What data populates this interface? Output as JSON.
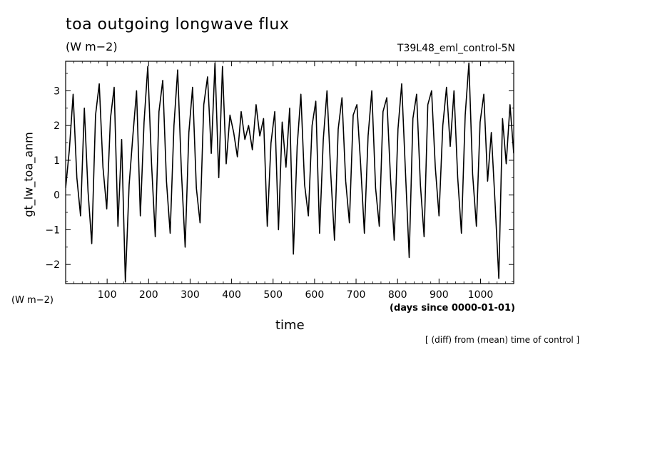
{
  "header": {
    "title": "toa outgoing longwave flux",
    "units": "(W m−2)",
    "run_name": "T39L48_eml_control-5N"
  },
  "axes": {
    "ylabel": "gt_lw_toa_anm",
    "y_units": "(W m−2)",
    "xlabel": "time",
    "x_units": "(days since 0000-01-01)"
  },
  "footnote": "[ (diff) from (mean) time of control ]",
  "chart_data": {
    "type": "line",
    "title": "toa outgoing longwave flux",
    "ylabel": "gt_lw_toa_anm",
    "xlabel": "time",
    "x_units": "days since 0000-01-01",
    "xlim": [
      0,
      1080
    ],
    "ylim": [
      -2.55,
      3.85
    ],
    "xticks": [
      100,
      200,
      300,
      400,
      500,
      600,
      700,
      800,
      900,
      1000
    ],
    "yticks": [
      -2,
      -1,
      0,
      1,
      2,
      3
    ],
    "ytick_labels": [
      "−2",
      "−1",
      "0",
      "1",
      "2",
      "3"
    ],
    "grid": false,
    "series": [
      {
        "x": [
          0,
          9,
          18,
          27,
          36,
          45,
          54,
          63,
          72,
          81,
          90,
          99,
          108,
          117,
          126,
          135,
          144,
          153,
          162,
          171,
          180,
          189,
          198,
          207,
          216,
          225,
          234,
          243,
          252,
          261,
          270,
          279,
          288,
          297,
          306,
          315,
          324,
          333,
          342,
          351,
          360,
          369,
          378,
          387,
          396,
          405,
          414,
          423,
          432,
          441,
          450,
          459,
          468,
          477,
          486,
          495,
          504,
          513,
          522,
          531,
          540,
          549,
          558,
          567,
          576,
          585,
          594,
          603,
          612,
          621,
          630,
          639,
          648,
          657,
          666,
          675,
          684,
          693,
          702,
          711,
          720,
          729,
          738,
          747,
          756,
          765,
          774,
          783,
          792,
          801,
          810,
          819,
          828,
          837,
          846,
          855,
          864,
          873,
          882,
          891,
          900,
          909,
          918,
          927,
          936,
          945,
          954,
          963,
          972,
          981,
          990,
          999,
          1008,
          1017,
          1026,
          1035,
          1044,
          1053,
          1062,
          1071,
          1080
        ],
        "values": [
          0.2,
          1.3,
          2.9,
          0.5,
          -0.6,
          2.5,
          0.1,
          -1.4,
          2.3,
          3.2,
          0.8,
          -0.4,
          2.2,
          3.1,
          -0.9,
          1.6,
          -2.5,
          0.3,
          1.7,
          3.0,
          -0.6,
          2.1,
          3.7,
          0.9,
          -1.2,
          2.4,
          3.3,
          0.4,
          -1.1,
          2.0,
          3.6,
          0.7,
          -1.5,
          1.8,
          3.1,
          0.2,
          -0.8,
          2.6,
          3.4,
          1.2,
          3.8,
          0.5,
          3.7,
          0.9,
          2.3,
          1.8,
          1.1,
          2.4,
          1.6,
          2.0,
          1.3,
          2.6,
          1.7,
          2.2,
          -0.9,
          1.5,
          2.4,
          -1.0,
          2.1,
          0.8,
          2.5,
          -1.7,
          1.4,
          2.9,
          0.3,
          -0.6,
          2.0,
          2.7,
          -1.1,
          1.6,
          3.0,
          0.6,
          -1.3,
          1.9,
          2.8,
          0.4,
          -0.8,
          2.3,
          2.6,
          0.9,
          -1.1,
          1.7,
          3.0,
          0.2,
          -0.9,
          2.4,
          2.8,
          0.5,
          -1.3,
          1.9,
          3.2,
          0.7,
          -1.8,
          2.2,
          2.9,
          0.3,
          -1.2,
          2.6,
          3.0,
          0.8,
          -0.6,
          2.0,
          3.1,
          1.4,
          3.0,
          0.5,
          -1.1,
          2.3,
          3.8,
          0.6,
          -0.9,
          2.1,
          2.9,
          0.4,
          1.8,
          -0.2,
          -2.4,
          2.2,
          0.9,
          2.6,
          1.2
        ]
      }
    ]
  }
}
